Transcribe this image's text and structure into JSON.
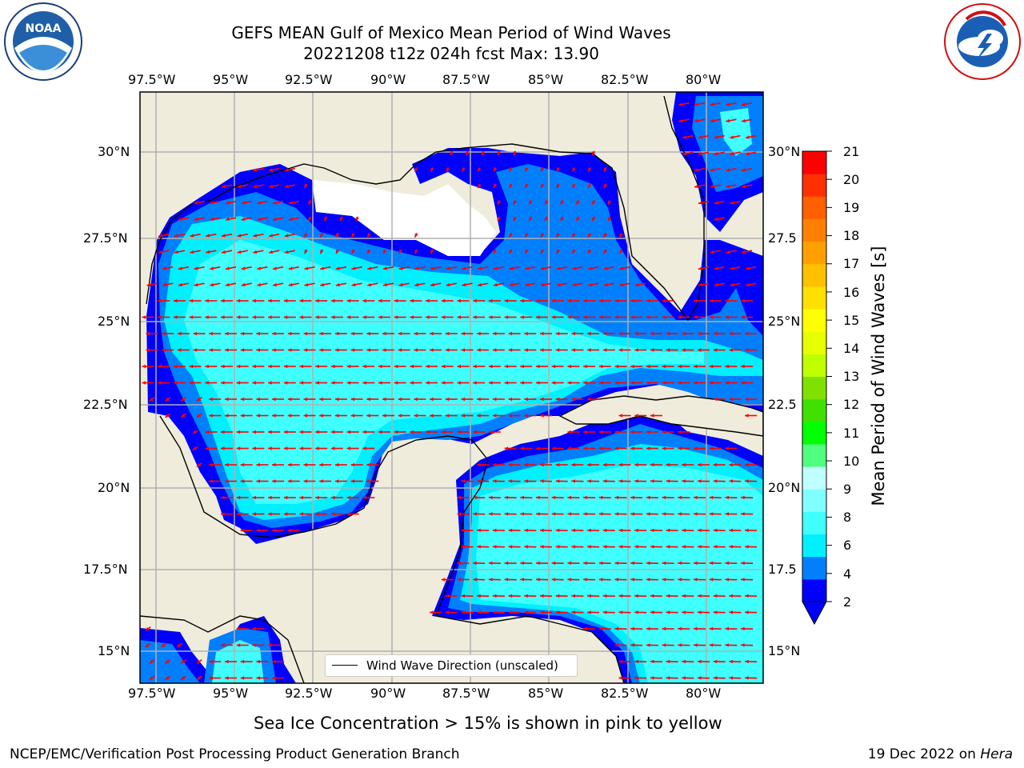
{
  "header": {
    "title_line1": "GEFS MEAN Gulf of Mexico Mean Period of Wind Waves",
    "title_line2": "20221208 t12z 024h fcst   Max: 13.90"
  },
  "logos": {
    "noaa_text": "NOAA",
    "noaa_ring": "NATIONAL OCEANIC AND ATMOSPHERIC ADMINISTRATION",
    "noaa_ring_bottom": "U.S. DEPARTMENT OF COMMERCE",
    "nws_ring": "NATIONAL WEATHER SERVICE"
  },
  "map": {
    "lon_ticks_top": [
      "97.5°W",
      "95°W",
      "92.5°W",
      "90°W",
      "87.5°W",
      "85°W",
      "82.5°W",
      "80°W"
    ],
    "lon_ticks_bottom": [
      "97.5°W",
      "95°W",
      "92.5°W",
      "90°W",
      "87.5°W",
      "85°W",
      "82.5°W",
      "80°W"
    ],
    "lat_ticks_left": [
      "30°N",
      "27.5°N",
      "25°N",
      "22.5°N",
      "20°N",
      "17.5°N",
      "15°N"
    ],
    "lat_ticks_right": [
      "30°N",
      "27.5",
      "25°N",
      "22.5",
      "20°N",
      "17.5",
      "15°N"
    ],
    "legend_label": "Wind Wave Direction (unscaled)",
    "colors": {
      "land": "#efecdc",
      "arrow": "#ff0000",
      "grid": "#b0b0b0"
    }
  },
  "colorbar": {
    "label": "Mean Period of Wind Waves [s]",
    "ticks": [
      "21",
      "20",
      "19",
      "18",
      "17",
      "16",
      "15",
      "14",
      "13",
      "12",
      "11",
      "10",
      "9",
      "8",
      "6",
      "4",
      "2"
    ],
    "colors": [
      "#0000ff",
      "#0080ff",
      "#00f0ff",
      "#40ffff",
      "#80ffff",
      "#c0ffff",
      "#50ff80",
      "#00ff00",
      "#40e000",
      "#80e000",
      "#c0ff00",
      "#e8ff00",
      "#ffff00",
      "#ffe000",
      "#ffc000",
      "#ffa000",
      "#ff8000",
      "#ff6000",
      "#ff3000",
      "#ff0000"
    ]
  },
  "footer": {
    "sea_ice_note": "Sea Ice Concentration > 15% is shown in pink to yellow",
    "left": "NCEP/EMC/Verification Post Processing Product Generation Branch",
    "date": "19 Dec 2022 on ",
    "host": "Hera"
  }
}
